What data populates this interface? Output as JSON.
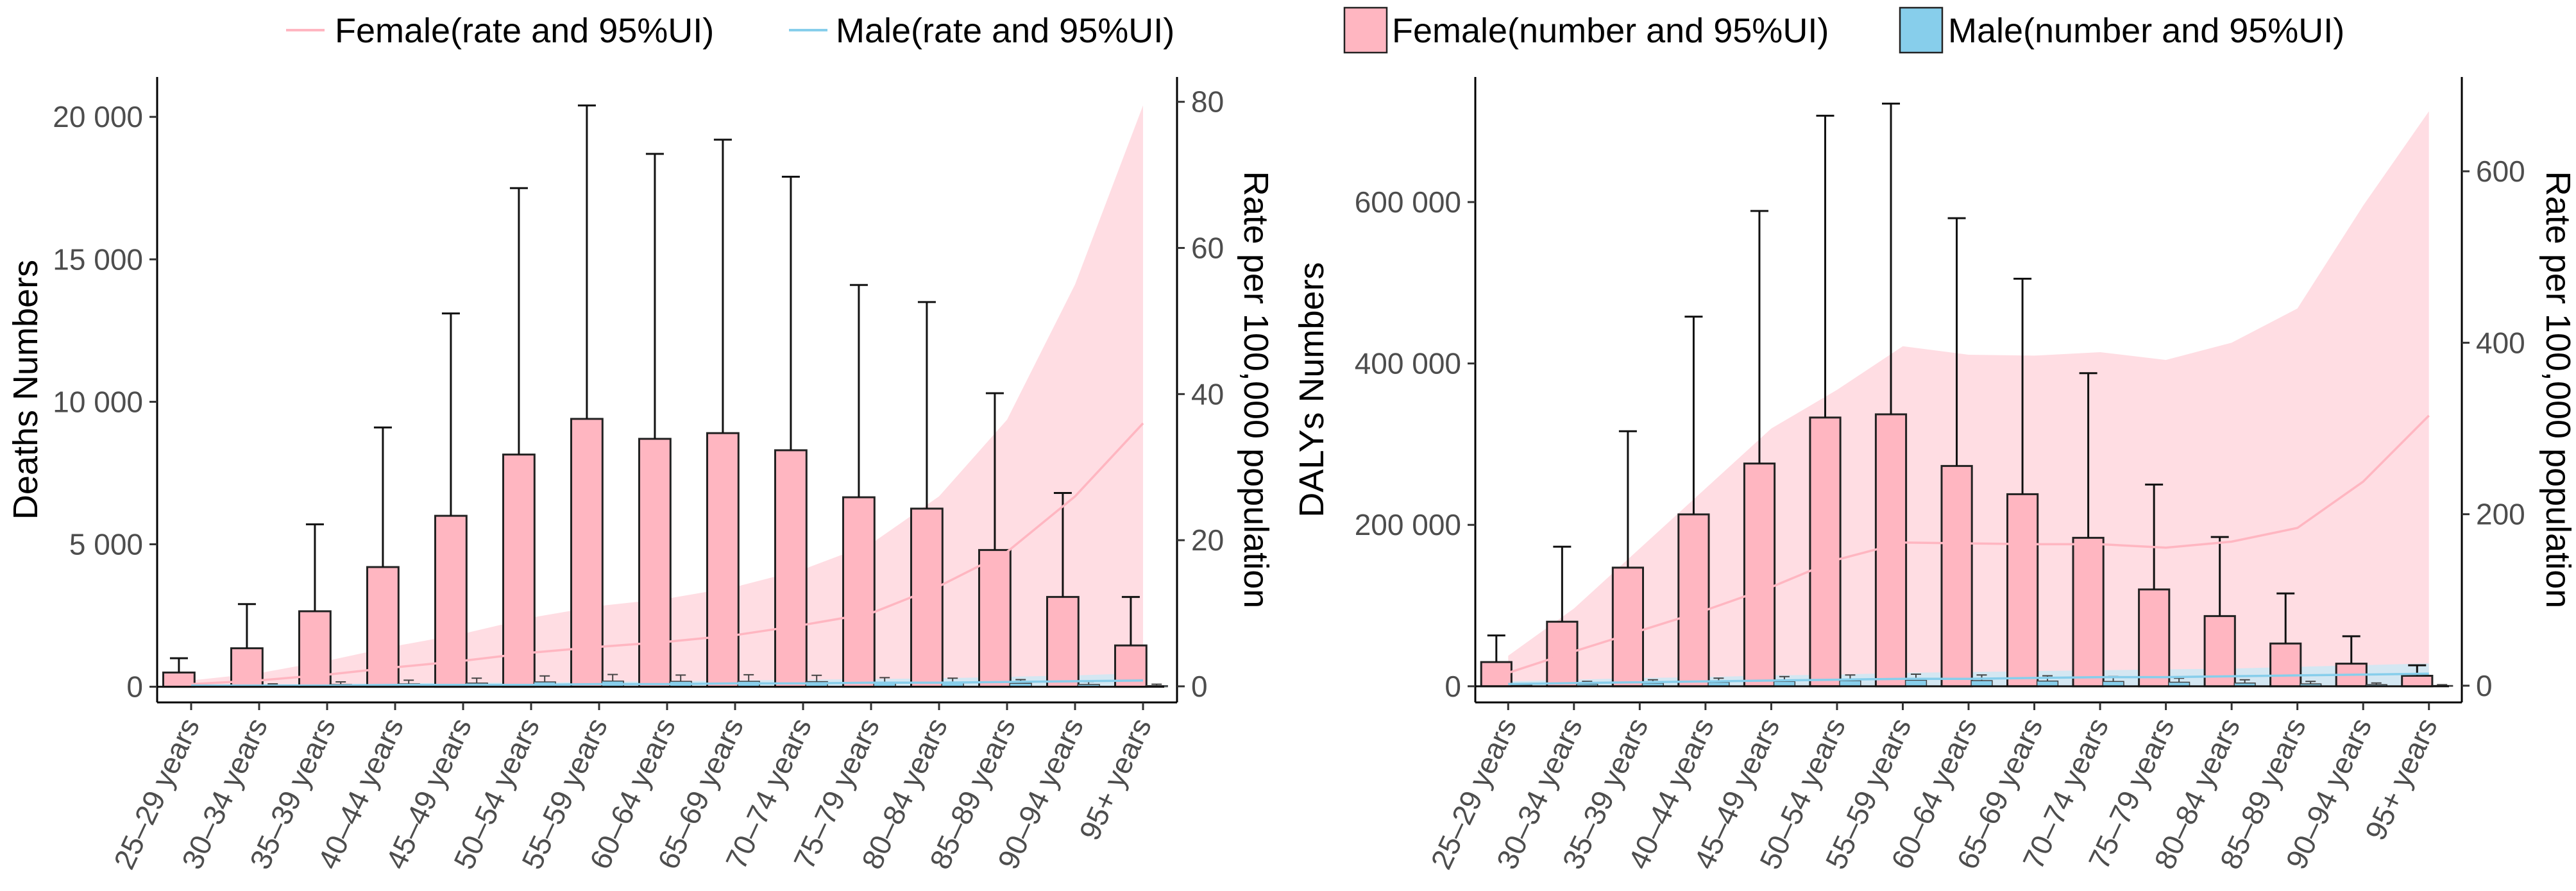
{
  "legend": {
    "female_rate": "Female(rate and 95%UI)",
    "male_rate": "Male(rate and 95%UI)",
    "female_number": "Female(number and 95%UI)",
    "male_number": "Male(number and 95%UI)"
  },
  "colors": {
    "female_bar": "#ffb6c1",
    "male_bar": "#87ceeb",
    "female_line": "#ffb6c1",
    "female_ribbon": "#ffd7de",
    "male_line": "#87ceeb",
    "male_ribbon": "#cde9f5"
  },
  "chart_data": [
    {
      "type": "bar",
      "panel": "left",
      "categories": [
        "25–29 years",
        "30–34 years",
        "35–39 years",
        "40–44 years",
        "45–49 years",
        "50–54 years",
        "55–59 years",
        "60–64 years",
        "65–69 years",
        "70–74 years",
        "75–79 years",
        "80–84 years",
        "85–89 years",
        "90–94 years",
        "95+ years"
      ],
      "ylabel": "Deaths Numbers",
      "ylabel2": "Rate per 100,000 population",
      "ylim": [
        -550,
        21400
      ],
      "yticks": [
        0,
        5000,
        10000,
        15000,
        20000
      ],
      "ytick_labels": [
        "0",
        "5 000",
        "10 000",
        "15 000",
        "20 000"
      ],
      "y2lim": [
        -2.2,
        83.4
      ],
      "y2ticks": [
        0,
        20,
        40,
        60,
        80
      ],
      "y2tick_labels": [
        "0",
        "20",
        "40",
        "60",
        "80"
      ],
      "female_number": [
        500,
        1350,
        2650,
        4200,
        6000,
        8150,
        9400,
        8700,
        8900,
        8300,
        6650,
        6250,
        4800,
        3150,
        1450
      ],
      "female_number_upper": [
        1000,
        2900,
        5700,
        9100,
        13100,
        17500,
        20400,
        18700,
        19200,
        17900,
        14100,
        13500,
        10300,
        6800,
        3150
      ],
      "male_number": [
        20,
        50,
        80,
        100,
        130,
        170,
        200,
        190,
        190,
        180,
        150,
        140,
        120,
        80,
        40
      ],
      "male_number_upper": [
        40,
        100,
        170,
        230,
        300,
        380,
        430,
        410,
        420,
        400,
        320,
        300,
        250,
        180,
        90
      ],
      "female_rate": [
        0.3,
        0.8,
        1.6,
        2.6,
        3.5,
        4.6,
        5.4,
        6.1,
        7.0,
        8.4,
        10.0,
        13.7,
        18.4,
        26.0,
        36.0
      ],
      "female_rate_lower": [
        0,
        0,
        0,
        0,
        0,
        0,
        0,
        0,
        0,
        0,
        0,
        0,
        0,
        0,
        0
      ],
      "female_rate_upper": [
        0.8,
        1.8,
        3.5,
        5.5,
        7.2,
        9.4,
        11.0,
        12.0,
        13.6,
        16.0,
        19.5,
        26.0,
        36.5,
        55.0,
        79.5
      ],
      "male_rate": [
        0.1,
        0.1,
        0.1,
        0.2,
        0.2,
        0.2,
        0.3,
        0.3,
        0.4,
        0.4,
        0.5,
        0.5,
        0.6,
        0.7,
        0.8
      ],
      "male_rate_lower": [
        0,
        0,
        0,
        0,
        0,
        0,
        0,
        0,
        0,
        0,
        0,
        0,
        0,
        0,
        0
      ],
      "male_rate_upper": [
        0.2,
        0.3,
        0.3,
        0.4,
        0.5,
        0.5,
        0.6,
        0.7,
        0.8,
        0.9,
        1.0,
        1.1,
        1.3,
        1.5,
        1.8
      ]
    },
    {
      "type": "bar",
      "panel": "right",
      "categories": [
        "25–29 years",
        "30–34 years",
        "35–39 years",
        "40–44 years",
        "45–49 years",
        "50–54 years",
        "55–59 years",
        "60–64 years",
        "65–69 years",
        "70–74 years",
        "75–79 years",
        "80–84 years",
        "85–89 years",
        "90–94 years",
        "95+ years"
      ],
      "ylabel": "DALYs Numbers",
      "ylabel2": "Rate per 100,000 population",
      "ylim": [
        -20000,
        755000
      ],
      "yticks": [
        0,
        200000,
        400000,
        600000
      ],
      "ytick_labels": [
        "0",
        "200 000",
        "400 000",
        "600 000"
      ],
      "y2lim": [
        -19.5,
        710
      ],
      "y2ticks": [
        0,
        200,
        400,
        600
      ],
      "y2tick_labels": [
        "0",
        "200",
        "400",
        "600"
      ],
      "female_number": [
        30000,
        80000,
        147000,
        213000,
        276000,
        333000,
        337000,
        273000,
        238000,
        184000,
        120000,
        87000,
        53000,
        28000,
        13000
      ],
      "female_number_upper": [
        63000,
        173000,
        316000,
        458000,
        589000,
        707000,
        722000,
        580000,
        505000,
        388000,
        250000,
        185000,
        115000,
        62000,
        26000
      ],
      "male_number": [
        1500,
        3000,
        4000,
        5000,
        6000,
        7000,
        7500,
        7000,
        6500,
        6000,
        5000,
        4000,
        3000,
        2000,
        1000
      ],
      "male_number_upper": [
        3000,
        6000,
        8000,
        10000,
        12000,
        14000,
        15000,
        14000,
        13000,
        12000,
        10000,
        8000,
        6000,
        4000,
        2000
      ],
      "female_rate": [
        15,
        40,
        64,
        88,
        115,
        147,
        167,
        166,
        165,
        165,
        161,
        168,
        184,
        238,
        315
      ],
      "female_rate_lower": [
        0,
        0,
        0,
        0,
        0,
        0,
        0,
        0,
        0,
        0,
        0,
        0,
        0,
        0,
        0
      ],
      "female_rate_upper": [
        35,
        90,
        160,
        230,
        300,
        345,
        396,
        386,
        385,
        389,
        380,
        400,
        440,
        560,
        670
      ],
      "male_rate": [
        2,
        3,
        4,
        5,
        6,
        7,
        8,
        8,
        9,
        10,
        10,
        11,
        12,
        13,
        14
      ],
      "male_rate_lower": [
        0,
        0,
        0,
        0,
        0,
        0,
        0,
        0,
        0,
        0,
        0,
        0,
        0,
        0,
        0
      ],
      "male_rate_upper": [
        5,
        7,
        9,
        10,
        12,
        13,
        15,
        16,
        17,
        18,
        19,
        20,
        22,
        24,
        26
      ]
    }
  ]
}
